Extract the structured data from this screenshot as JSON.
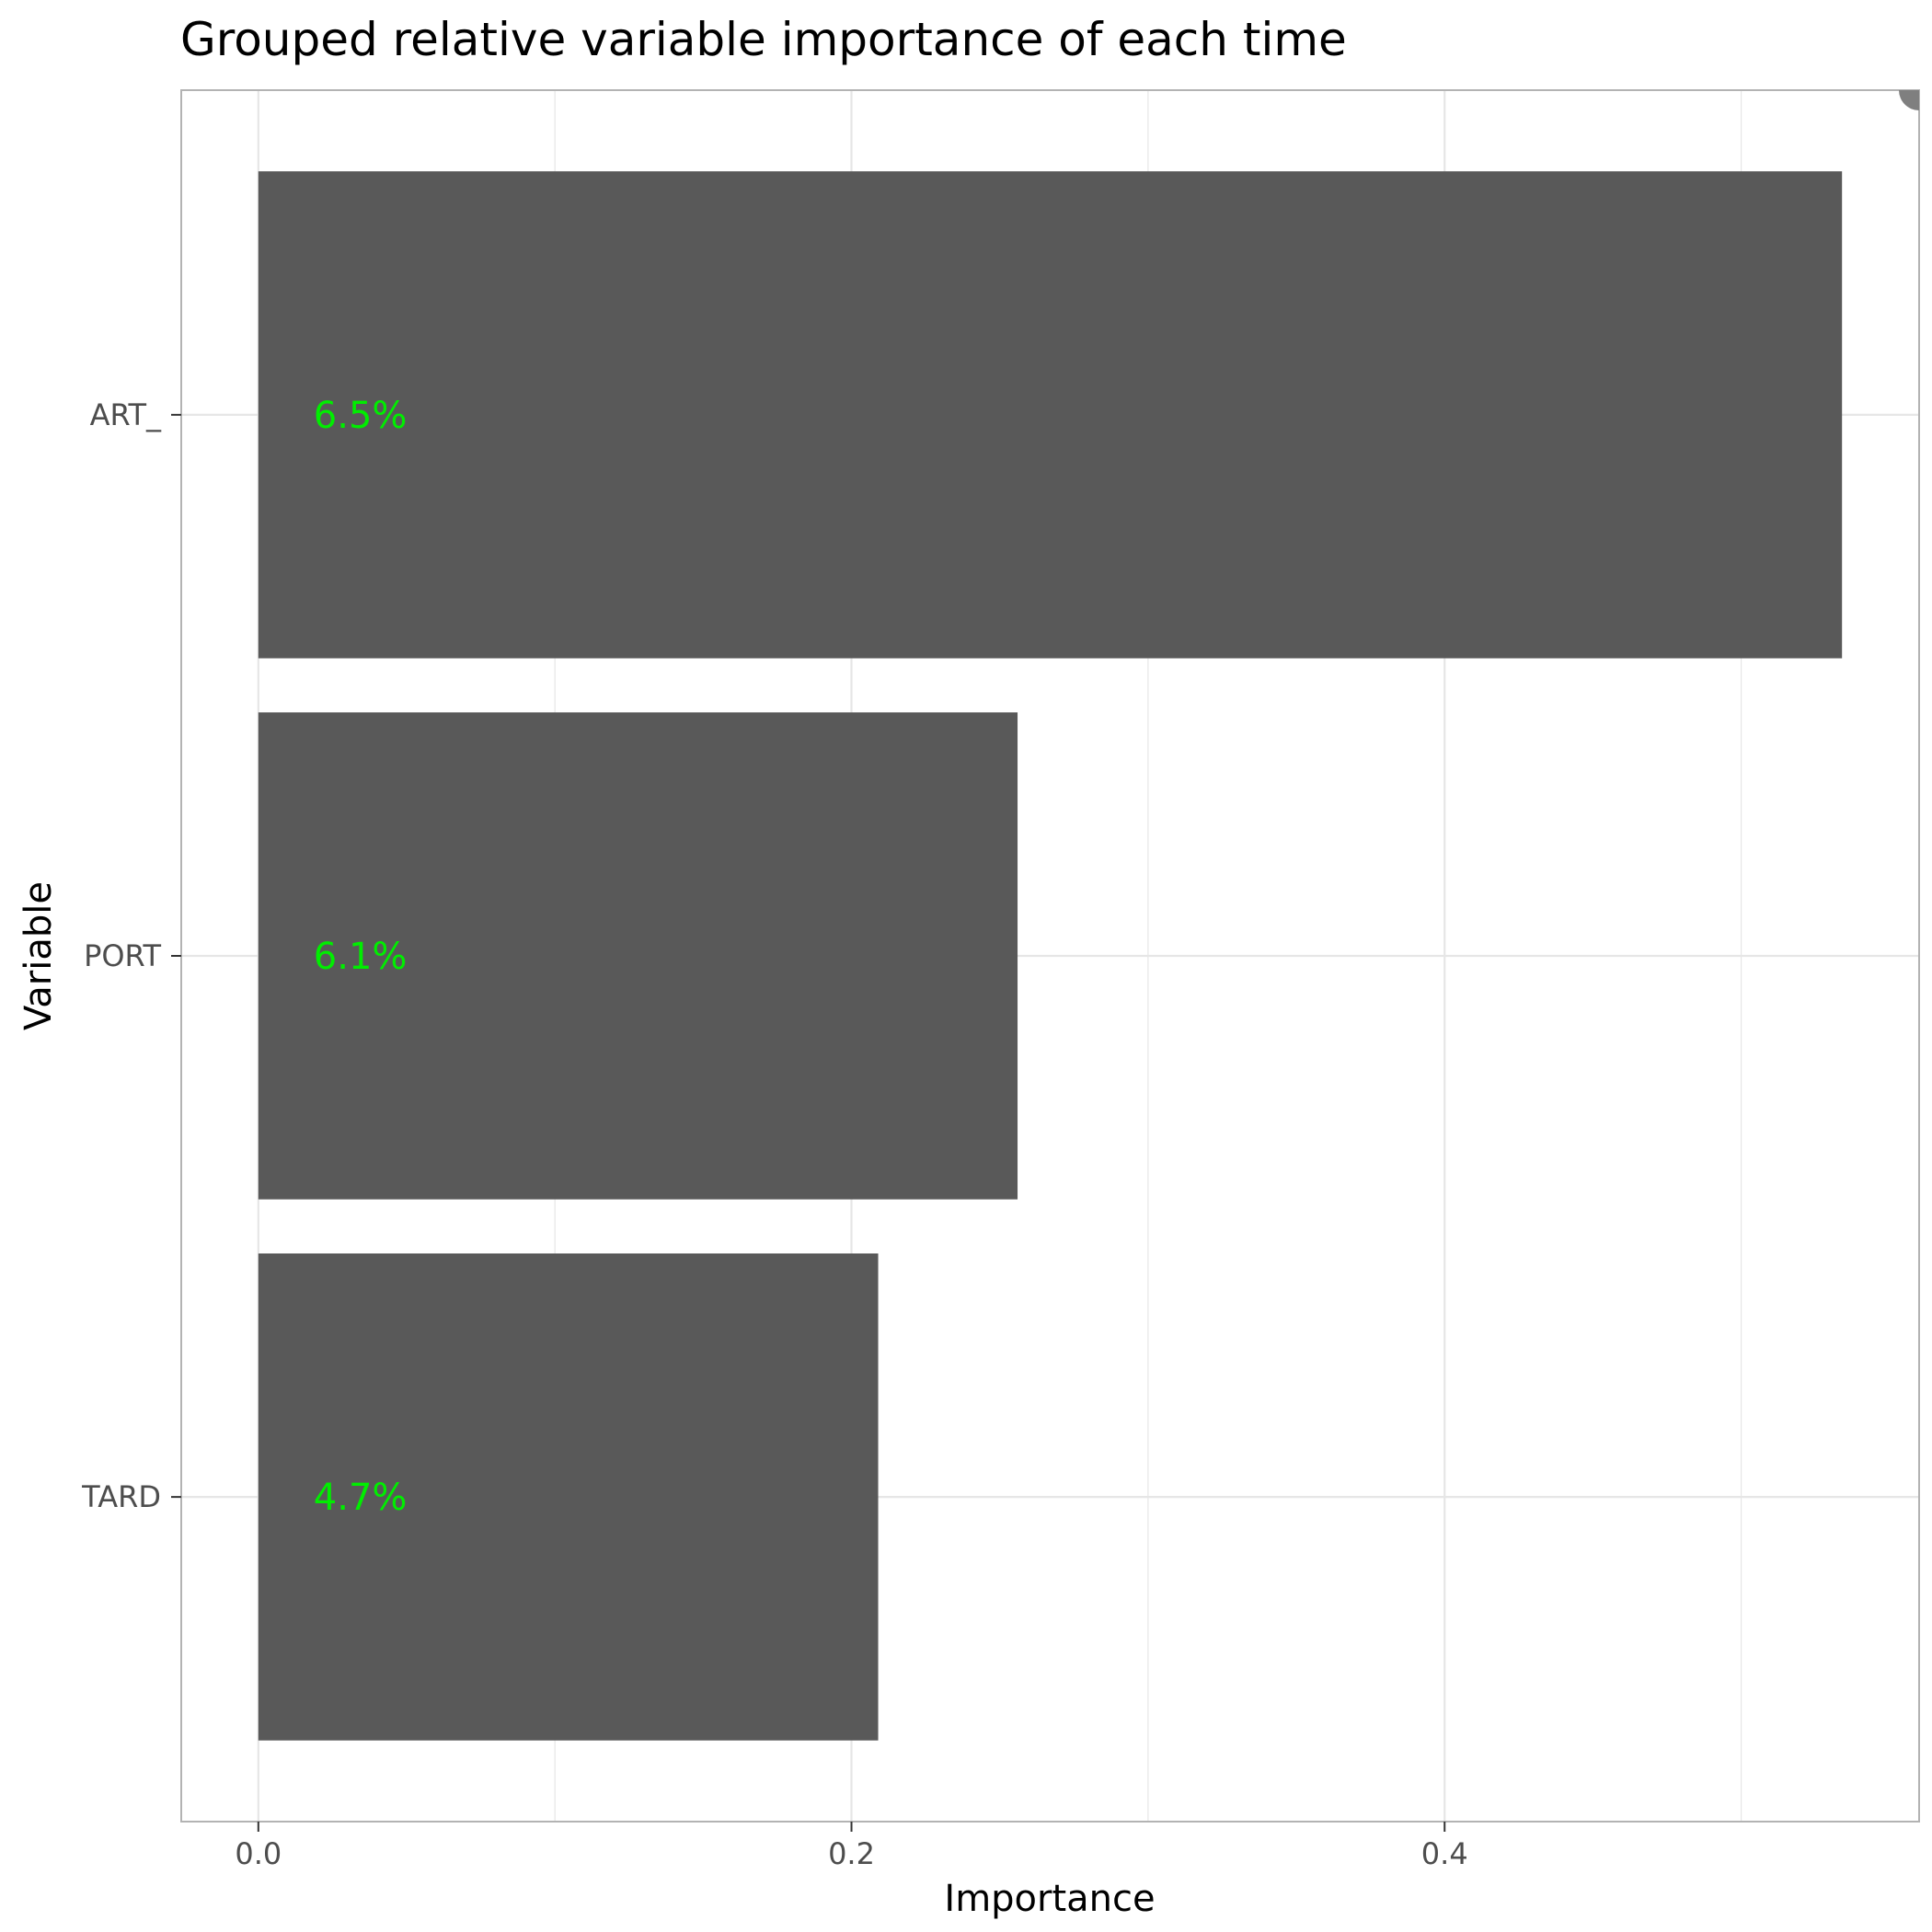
{
  "chart_data": {
    "type": "bar",
    "orientation": "horizontal",
    "title": "Grouped relative variable importance of each time",
    "xlabel": "Importance",
    "ylabel": "Variable",
    "categories": [
      "ART_",
      "PORT",
      "TARD"
    ],
    "values": [
      0.534,
      0.256,
      0.209
    ],
    "data_labels": [
      "6.5%",
      "6.1%",
      "4.7%"
    ],
    "xlim": [
      -0.026,
      0.56
    ],
    "x_ticks": [
      0.0,
      0.2,
      0.4
    ],
    "x_tick_labels": [
      "0.0",
      "0.2",
      "0.4"
    ],
    "x_minor_ticks": [
      0.1,
      0.3,
      0.5
    ],
    "grid": true,
    "legend": "none",
    "colors": {
      "bar": "#595959",
      "data_label": "#00ee00",
      "grid": "#e6e6e6",
      "panel_border": "#b3b3b3",
      "marker": "#7f7f7f"
    }
  }
}
